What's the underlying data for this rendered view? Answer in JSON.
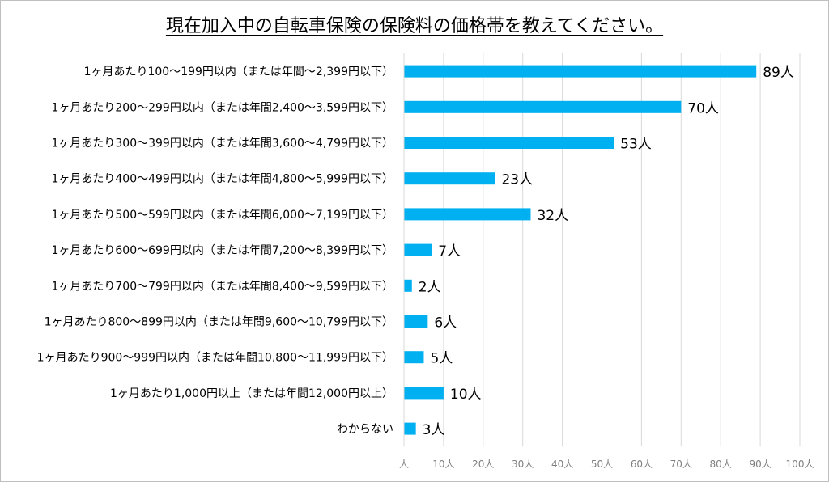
{
  "chart_data": {
    "type": "bar",
    "orientation": "horizontal",
    "title": "現在加入中の自転車保険の保険料の価格帯を教えてください。",
    "categories": [
      "1ヶ月あたり100〜199円以内（または年間〜2,399円以下）",
      "1ヶ月あたり200〜299円以内（または年間2,400〜3,599円以下）",
      "1ヶ月あたり300〜399円以内（または年間3,600〜4,799円以下）",
      "1ヶ月あたり400〜499円以内（または年間4,800〜5,999円以下）",
      "1ヶ月あたり500〜599円以内（または年間6,000〜7,199円以下）",
      "1ヶ月あたり600〜699円以内（または年間7,200〜8,399円以下）",
      "1ヶ月あたり700〜799円以内（または年間8,400〜9,599円以下）",
      "1ヶ月あたり800〜899円以内（または年間9,600〜10,799円以下）",
      "1ヶ月あたり900〜999円以内（または年間10,800〜11,999円以下）",
      "1ヶ月あたり1,000円以上（または年間12,000円以上）",
      "わからない"
    ],
    "values": [
      89,
      70,
      53,
      23,
      32,
      7,
      2,
      6,
      5,
      10,
      3
    ],
    "value_labels": [
      "89人",
      "70人",
      "53人",
      "23人",
      "32人",
      "7人",
      "2人",
      "6人",
      "5人",
      "10人",
      "3人"
    ],
    "xlim": [
      0,
      100
    ],
    "x_ticks": [
      "人",
      "10人",
      "20人",
      "30人",
      "40人",
      "50人",
      "60人",
      "70人",
      "80人",
      "90人",
      "100人"
    ],
    "bar_color": "#00b0f0",
    "grid": "vertical"
  }
}
